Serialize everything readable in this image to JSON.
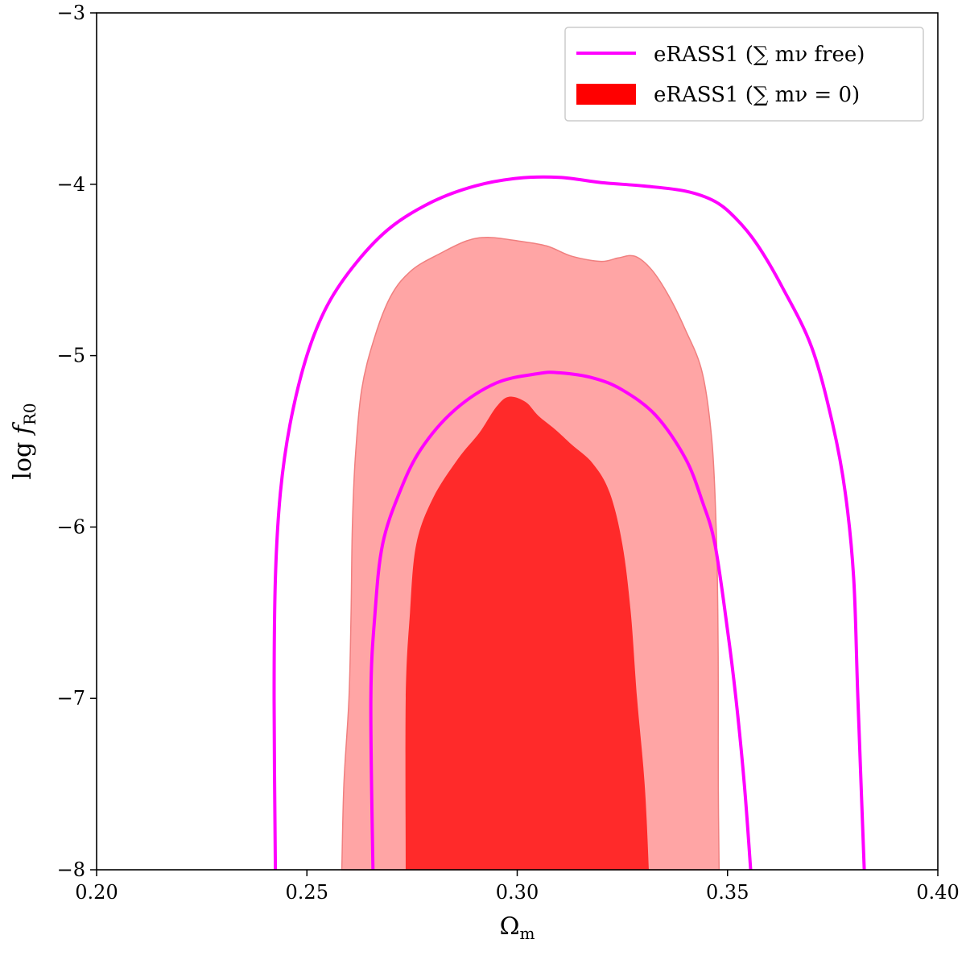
{
  "chart_data": {
    "type": "contour",
    "xlabel": "Ωm",
    "ylabel": "log fR0",
    "xlim": [
      0.2,
      0.4
    ],
    "ylim": [
      -8,
      -3
    ],
    "xticks": [
      0.2,
      0.25,
      0.3,
      0.35,
      0.4
    ],
    "xtick_labels": [
      "0.20",
      "0.25",
      "0.30",
      "0.35",
      "0.40"
    ],
    "yticks": [
      -8,
      -7,
      -6,
      -5,
      -4,
      -3
    ],
    "ytick_labels": [
      "−8",
      "−7",
      "−6",
      "−5",
      "−4",
      "−3"
    ],
    "legend_position": "upper-right",
    "series": [
      {
        "name": "eRASS1 (∑ mν free)",
        "style": "line",
        "color": "#ff00ff",
        "contours": [
          {
            "level": "outer",
            "points": [
              [
                0.2425,
                -8.0
              ],
              [
                0.2422,
                -7.0
              ],
              [
                0.2425,
                -6.3
              ],
              [
                0.2437,
                -5.8
              ],
              [
                0.246,
                -5.4
              ],
              [
                0.25,
                -5.0
              ],
              [
                0.255,
                -4.7
              ],
              [
                0.262,
                -4.45
              ],
              [
                0.27,
                -4.25
              ],
              [
                0.28,
                -4.1
              ],
              [
                0.29,
                -4.01
              ],
              [
                0.3,
                -3.965
              ],
              [
                0.31,
                -3.96
              ],
              [
                0.32,
                -3.99
              ],
              [
                0.33,
                -4.01
              ],
              [
                0.34,
                -4.04
              ],
              [
                0.347,
                -4.1
              ],
              [
                0.352,
                -4.2
              ],
              [
                0.357,
                -4.35
              ],
              [
                0.363,
                -4.6
              ],
              [
                0.37,
                -4.95
              ],
              [
                0.375,
                -5.4
              ],
              [
                0.378,
                -5.8
              ],
              [
                0.38,
                -6.3
              ],
              [
                0.381,
                -7.0
              ],
              [
                0.3825,
                -8.0
              ]
            ]
          },
          {
            "level": "inner",
            "points": [
              [
                0.2657,
                -8.0
              ],
              [
                0.2652,
                -7.0
              ],
              [
                0.2662,
                -6.5
              ],
              [
                0.268,
                -6.1
              ],
              [
                0.272,
                -5.8
              ],
              [
                0.277,
                -5.55
              ],
              [
                0.285,
                -5.32
              ],
              [
                0.295,
                -5.16
              ],
              [
                0.305,
                -5.105
              ],
              [
                0.31,
                -5.1
              ],
              [
                0.318,
                -5.13
              ],
              [
                0.325,
                -5.2
              ],
              [
                0.333,
                -5.35
              ],
              [
                0.34,
                -5.6
              ],
              [
                0.344,
                -5.85
              ],
              [
                0.347,
                -6.1
              ],
              [
                0.35,
                -6.6
              ],
              [
                0.352,
                -7.0
              ],
              [
                0.354,
                -7.5
              ],
              [
                0.3555,
                -8.0
              ]
            ]
          }
        ]
      },
      {
        "name": "eRASS1 (∑ mν = 0)",
        "style": "filled",
        "color": "#ff0000",
        "fill_colors": [
          "#ffa5a5",
          "#ff2a2a"
        ],
        "contours": [
          {
            "level": "outer",
            "points": [
              [
                0.2583,
                -8.0
              ],
              [
                0.2588,
                -7.5
              ],
              [
                0.26,
                -7.0
              ],
              [
                0.2605,
                -6.5
              ],
              [
                0.2608,
                -6.0
              ],
              [
                0.2615,
                -5.6
              ],
              [
                0.263,
                -5.2
              ],
              [
                0.266,
                -4.9
              ],
              [
                0.27,
                -4.65
              ],
              [
                0.275,
                -4.5
              ],
              [
                0.282,
                -4.4
              ],
              [
                0.288,
                -4.33
              ],
              [
                0.293,
                -4.31
              ],
              [
                0.3,
                -4.33
              ],
              [
                0.307,
                -4.36
              ],
              [
                0.313,
                -4.42
              ],
              [
                0.32,
                -4.45
              ],
              [
                0.324,
                -4.43
              ],
              [
                0.328,
                -4.42
              ],
              [
                0.332,
                -4.5
              ],
              [
                0.336,
                -4.65
              ],
              [
                0.34,
                -4.85
              ],
              [
                0.344,
                -5.1
              ],
              [
                0.3463,
                -5.5
              ],
              [
                0.3473,
                -6.0
              ],
              [
                0.3477,
                -6.5
              ],
              [
                0.3478,
                -7.0
              ],
              [
                0.3478,
                -7.5
              ],
              [
                0.348,
                -8.0
              ]
            ]
          },
          {
            "level": "inner",
            "points": [
              [
                0.2735,
                -8.0
              ],
              [
                0.2735,
                -7.0
              ],
              [
                0.2745,
                -6.5
              ],
              [
                0.276,
                -6.1
              ],
              [
                0.28,
                -5.83
              ],
              [
                0.286,
                -5.6
              ],
              [
                0.291,
                -5.45
              ],
              [
                0.295,
                -5.3
              ],
              [
                0.298,
                -5.24
              ],
              [
                0.302,
                -5.27
              ],
              [
                0.305,
                -5.35
              ],
              [
                0.309,
                -5.43
              ],
              [
                0.313,
                -5.52
              ],
              [
                0.318,
                -5.63
              ],
              [
                0.322,
                -5.8
              ],
              [
                0.325,
                -6.1
              ],
              [
                0.327,
                -6.5
              ],
              [
                0.3285,
                -7.0
              ],
              [
                0.3303,
                -7.5
              ],
              [
                0.3313,
                -8.0
              ]
            ]
          }
        ]
      }
    ]
  }
}
